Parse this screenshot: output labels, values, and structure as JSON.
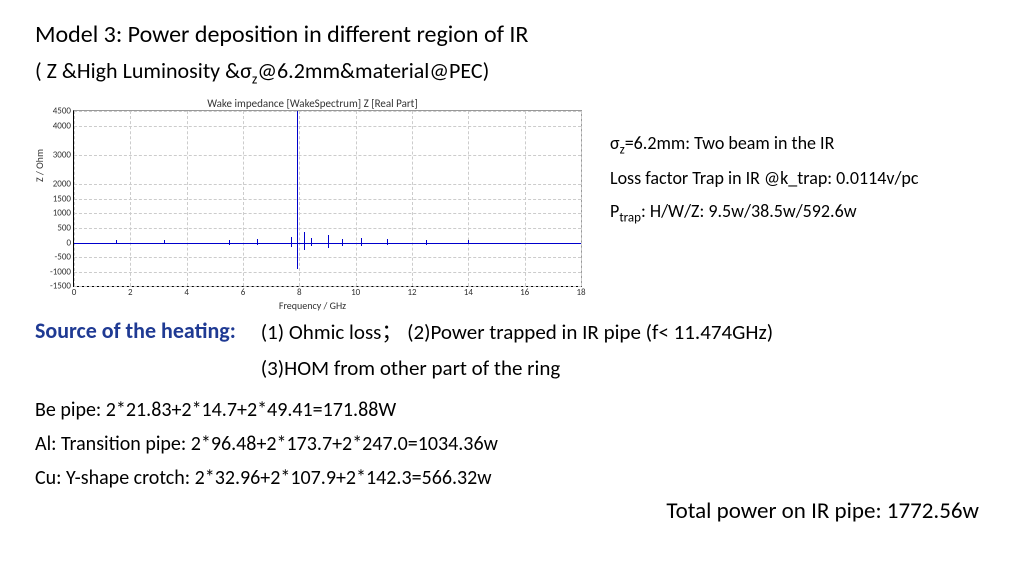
{
  "title": "Model 3: Power deposition in different region of IR",
  "subtitle_prefix": "( Z &High Luminosity &σ",
  "subtitle_sub": "z",
  "subtitle_suffix": "@6.2mm&material@PEC)",
  "chart": {
    "title": "Wake impedance [WakeSpectrum] Z [Real Part]",
    "ylabel": "Z / Ohm",
    "xlabel": "Frequency / GHz",
    "xlim": [
      0,
      18
    ],
    "ylim": [
      -1500,
      4500
    ],
    "xticks": [
      0,
      2,
      4,
      6,
      8,
      10,
      12,
      14,
      16,
      18
    ],
    "yticks": [
      -1500,
      -1000,
      -500,
      0,
      500,
      1000,
      1500,
      2000,
      3000,
      4000,
      4500
    ],
    "line_color": "#0000cc",
    "grid_color": "#cccccc",
    "background": "#ffffff",
    "spikes": [
      {
        "x": 7.9,
        "ymin": -900,
        "ymax": 4500
      },
      {
        "x": 7.7,
        "ymin": -150,
        "ymax": 200
      },
      {
        "x": 8.15,
        "ymin": -250,
        "ymax": 350
      },
      {
        "x": 8.4,
        "ymin": -100,
        "ymax": 150
      },
      {
        "x": 9.0,
        "ymin": -180,
        "ymax": 250
      },
      {
        "x": 9.5,
        "ymin": -100,
        "ymax": 140
      },
      {
        "x": 10.2,
        "ymin": -120,
        "ymax": 160
      },
      {
        "x": 11.1,
        "ymin": -90,
        "ymax": 110
      },
      {
        "x": 1.5,
        "ymin": -60,
        "ymax": 90
      },
      {
        "x": 3.2,
        "ymin": -60,
        "ymax": 80
      },
      {
        "x": 5.5,
        "ymin": -70,
        "ymax": 100
      },
      {
        "x": 6.5,
        "ymin": -80,
        "ymax": 110
      },
      {
        "x": 12.5,
        "ymin": -70,
        "ymax": 90
      },
      {
        "x": 14.0,
        "ymin": -60,
        "ymax": 80
      }
    ]
  },
  "notes": {
    "line1_pre": "σ",
    "line1_sub": "z",
    "line1_post": "=6.2mm: Two beam in the IR",
    "line2": "Loss factor Trap in IR @k_trap: 0.0114v/pc",
    "line3_pre": "P",
    "line3_sub": "trap",
    "line3_post": ": H/W/Z: 9.5w/38.5w/592.6w"
  },
  "heating_label": "Source of the heating:",
  "heating_item1": "(1) Ohmic loss；  (2)Power trapped in IR pipe (f< 11.474GHz)",
  "heating_item2": "(3)HOM from other part of the ring",
  "pipes": {
    "be": "Be pipe: 2*21.83+2*14.7+2*49.41=171.88W",
    "al": "Al: Transition pipe: 2*96.48+2*173.7+2*247.0=1034.36w",
    "cu": "Cu: Y-shape crotch: 2*32.96+2*107.9+2*142.3=566.32w"
  },
  "total": "Total power on IR pipe: 1772.56w"
}
